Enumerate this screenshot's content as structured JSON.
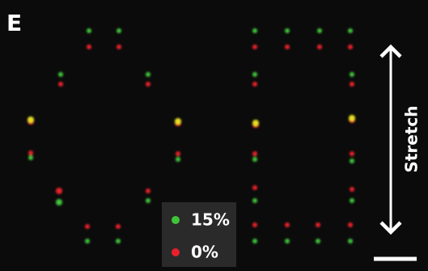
{
  "panel_label": "E",
  "legend": {
    "items": [
      {
        "label": "15%",
        "color": "#3fc43a"
      },
      {
        "label": "0%",
        "color": "#e8202a"
      }
    ]
  },
  "arrow_label": "Stretch"
}
